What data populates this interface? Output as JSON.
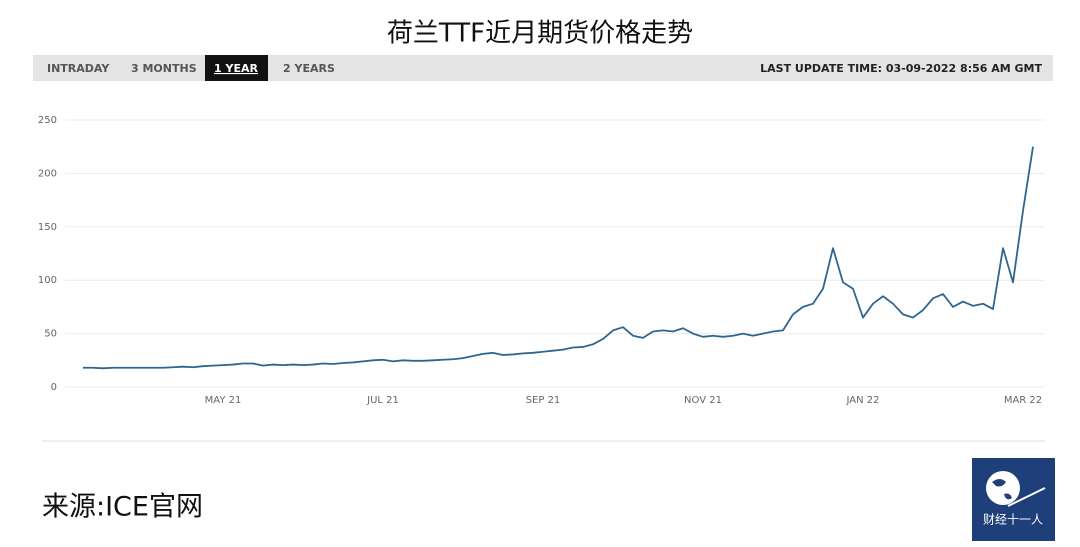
{
  "chart_data": {
    "type": "line",
    "title": "荷兰TTF近月期货价格走势",
    "categories": [
      null,
      null,
      null,
      null,
      null,
      null,
      null,
      null,
      null,
      null,
      null,
      null,
      null,
      null,
      "MAY 21",
      null,
      null,
      null,
      null,
      null,
      null,
      null,
      null,
      null,
      null,
      null,
      null,
      null,
      null,
      null,
      "JUL 21",
      null,
      null,
      null,
      null,
      null,
      null,
      null,
      null,
      null,
      null,
      null,
      null,
      null,
      null,
      null,
      "SEP 21",
      null,
      null,
      null,
      null,
      null,
      null,
      null,
      null,
      null,
      null,
      null,
      null,
      null,
      null,
      null,
      "NOV 21",
      null,
      null,
      null,
      null,
      null,
      null,
      null,
      null,
      null,
      null,
      null,
      null,
      null,
      null,
      null,
      "JAN 22",
      null,
      null,
      null,
      null,
      null,
      null,
      null,
      null,
      null,
      null,
      null,
      null,
      null,
      null,
      null,
      "MAR 22",
      null
    ],
    "series": [
      {
        "name": "TTF",
        "color": "#2f6690",
        "values": [
          18,
          18,
          17.5,
          18,
          18,
          18,
          18,
          18,
          18,
          18.5,
          19,
          18.5,
          19.5,
          20,
          20.5,
          21,
          22,
          22,
          20,
          21,
          20.5,
          21,
          20.5,
          21,
          22,
          21.5,
          22.5,
          23,
          24,
          25,
          25.5,
          24,
          25,
          24.5,
          24.5,
          25,
          25.5,
          26,
          27,
          29,
          31,
          32,
          30,
          30.5,
          31.5,
          32,
          33,
          34,
          35,
          37,
          37.5,
          40,
          45,
          53,
          56,
          48,
          46,
          52,
          53,
          52,
          55,
          50,
          47,
          48,
          47,
          48,
          50,
          48,
          50,
          52,
          53,
          68,
          75,
          78,
          92,
          130,
          98,
          92,
          65,
          78,
          85,
          78,
          68,
          65,
          72,
          83,
          87,
          75,
          80,
          76,
          78,
          73,
          130,
          98,
          165,
          225
        ]
      }
    ],
    "ylim": [
      0,
      250
    ],
    "yticks": [
      0,
      50,
      100,
      150,
      200,
      250
    ],
    "grid": true
  },
  "tabs": [
    "INTRADAY",
    "3 MONTHS",
    "1 YEAR",
    "2 YEARS"
  ],
  "last_update": "LAST UPDATE TIME: 03-09-2022 8:56 AM GMT",
  "source": "来源:ICE官网",
  "logo": "财经十一人"
}
